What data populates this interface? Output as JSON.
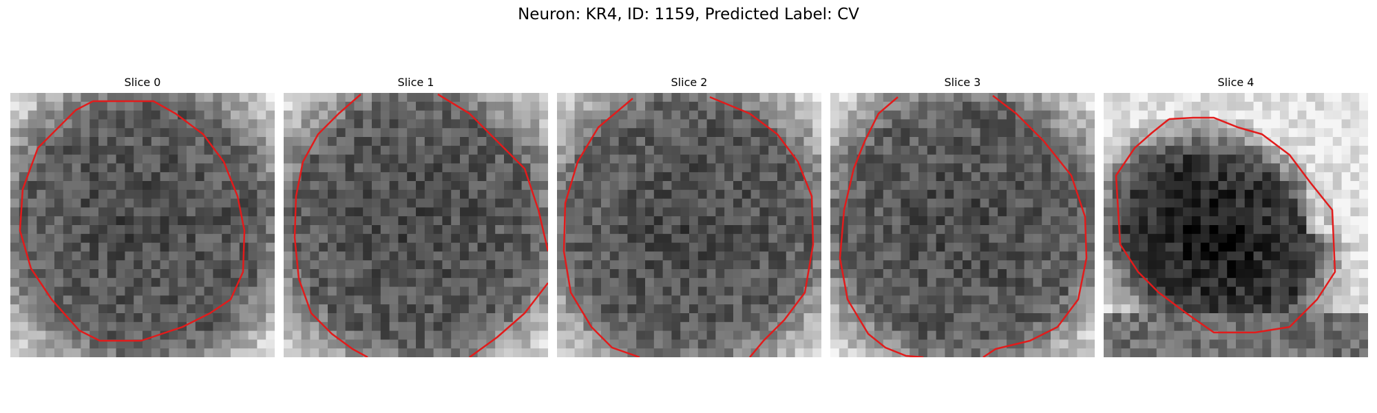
{
  "figure": {
    "title": "Neuron: KR4, ID: 1159, Predicted Label: CV"
  },
  "panels": [
    {
      "title": "Slice 0",
      "seed": 11,
      "ring": "light",
      "contour_color": "#e21b1b"
    },
    {
      "title": "Slice 1",
      "seed": 23,
      "ring": "light",
      "contour_color": "#e21b1b"
    },
    {
      "title": "Slice 2",
      "seed": 37,
      "ring": "light",
      "contour_color": "#e21b1b"
    },
    {
      "title": "Slice 3",
      "seed": 41,
      "ring": "light",
      "contour_color": "#e21b1b"
    },
    {
      "title": "Slice 4",
      "seed": 53,
      "ring": "dark-diagonal",
      "contour_color": "#e21b1b"
    }
  ]
}
